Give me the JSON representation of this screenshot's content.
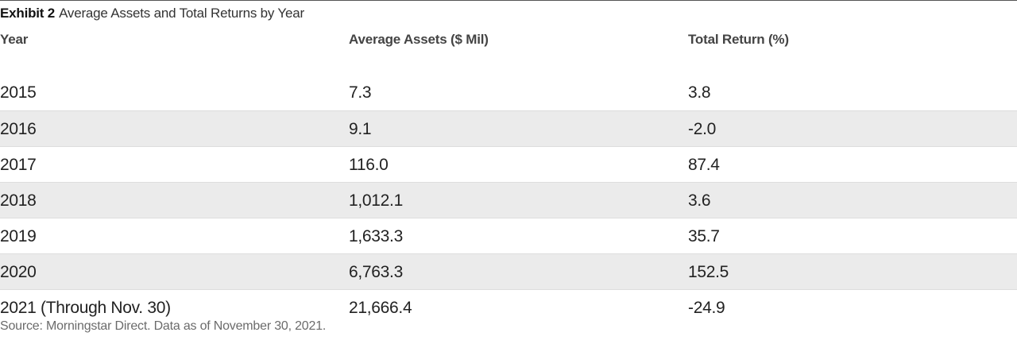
{
  "exhibit": {
    "label": "Exhibit 2",
    "title": "Average Assets and Total Returns by Year"
  },
  "chart_data": {
    "type": "table",
    "title": "Average Assets and Total Returns by Year",
    "columns": [
      "Year",
      "Average Assets ($ Mil)",
      "Total Return (%)"
    ],
    "rows": [
      [
        "2015",
        "7.3",
        "3.8"
      ],
      [
        "2016",
        "9.1",
        "-2.0"
      ],
      [
        "2017",
        "116.0",
        "87.4"
      ],
      [
        "2018",
        "1,012.1",
        "3.6"
      ],
      [
        "2019",
        "1,633.3",
        "35.7"
      ],
      [
        "2020",
        "6,763.3",
        "152.5"
      ],
      [
        "2021 (Through Nov. 30)",
        "21,666.4",
        "-24.9"
      ]
    ]
  },
  "source": "Source: Morningstar Direct.  Data as of November 30, 2021.",
  "colors": {
    "row_shade": "#ebebeb",
    "text": "#222222",
    "source_text": "#6b6b6b"
  }
}
